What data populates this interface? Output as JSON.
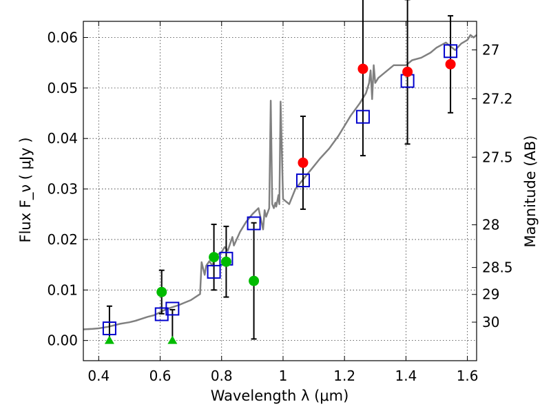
{
  "chart_data": {
    "type": "scatter",
    "xlabel": "Wavelength  λ (μm)",
    "ylabel": "Flux  F_ν  ( μJy )",
    "ylabel_right": "Magnitude (AB)",
    "xlim": [
      0.35,
      1.63
    ],
    "ylim": [
      -0.004,
      0.0632
    ],
    "x_ticks": [
      0.4,
      0.6,
      0.8,
      1,
      1.2,
      1.4,
      1.6
    ],
    "x_tick_labels": [
      "0.4",
      "0.6",
      "0.8",
      "1",
      "1.2",
      "1.4",
      "1.6"
    ],
    "y_ticks": [
      0.0,
      0.01,
      0.02,
      0.03,
      0.04,
      0.05,
      0.06
    ],
    "y_tick_labels": [
      "0.00",
      "0.01",
      "0.02",
      "0.03",
      "0.04",
      "0.05",
      "0.06"
    ],
    "right_ticks": [
      {
        "label": "27",
        "mag": 27
      },
      {
        "label": "27.2",
        "mag": 27.2
      },
      {
        "label": "27.5",
        "mag": 27.5
      },
      {
        "label": "28",
        "mag": 28
      },
      {
        "label": "28.5",
        "mag": 28.5
      },
      {
        "label": "29",
        "mag": 29
      },
      {
        "label": "30",
        "mag": 30
      }
    ],
    "grid": true,
    "colors": {
      "spectrum": "#808080",
      "model": "#0000cc",
      "measured_red": "#ff0000",
      "measured_green": "#00bb00",
      "errorbar": "#000000"
    },
    "series": [
      {
        "type": "line",
        "color": "#808080",
        "x": [
          0.35,
          0.38,
          0.4,
          0.43,
          0.45,
          0.47,
          0.5,
          0.52,
          0.54,
          0.56,
          0.58,
          0.6,
          0.62,
          0.64,
          0.66,
          0.68,
          0.7,
          0.72,
          0.73,
          0.735,
          0.745,
          0.75,
          0.76,
          0.77,
          0.78,
          0.8,
          0.81,
          0.82,
          0.835,
          0.84,
          0.86,
          0.88,
          0.9,
          0.92,
          0.935,
          0.94,
          0.945,
          0.955,
          0.96,
          0.965,
          0.97,
          0.975,
          0.978,
          0.982,
          0.985,
          0.988,
          0.992,
          1.0,
          1.02,
          1.04,
          1.06,
          1.08,
          1.1,
          1.12,
          1.15,
          1.18,
          1.2,
          1.22,
          1.25,
          1.27,
          1.28,
          1.285,
          1.29,
          1.295,
          1.3,
          1.31,
          1.33,
          1.36,
          1.4,
          1.42,
          1.45,
          1.48,
          1.5,
          1.53,
          1.56,
          1.58,
          1.6,
          1.61,
          1.62,
          1.63
        ],
        "y": [
          0.0022,
          0.0023,
          0.0024,
          0.0027,
          0.003,
          0.0033,
          0.0036,
          0.0039,
          0.0043,
          0.0047,
          0.005,
          0.0056,
          0.0062,
          0.0066,
          0.007,
          0.0075,
          0.008,
          0.0088,
          0.0092,
          0.0155,
          0.013,
          0.0148,
          0.0157,
          0.0148,
          0.0168,
          0.0175,
          0.0185,
          0.0178,
          0.0205,
          0.0188,
          0.0215,
          0.0235,
          0.025,
          0.0262,
          0.022,
          0.0258,
          0.0245,
          0.0262,
          0.0475,
          0.027,
          0.0262,
          0.0273,
          0.0265,
          0.0278,
          0.0288,
          0.027,
          0.0473,
          0.028,
          0.027,
          0.03,
          0.0315,
          0.033,
          0.0345,
          0.036,
          0.038,
          0.0405,
          0.0425,
          0.0445,
          0.047,
          0.049,
          0.051,
          0.0535,
          0.0478,
          0.0545,
          0.051,
          0.052,
          0.053,
          0.0545,
          0.0545,
          0.0555,
          0.056,
          0.057,
          0.058,
          0.059,
          0.0575,
          0.0588,
          0.0595,
          0.0605,
          0.06,
          0.0605
        ]
      },
      {
        "type": "open_square",
        "color": "#0000cc",
        "x": [
          0.435,
          0.605,
          0.64,
          0.775,
          0.815,
          0.905,
          1.065,
          1.26,
          1.405,
          1.545
        ],
        "y": [
          0.0024,
          0.0052,
          0.0063,
          0.0136,
          0.0162,
          0.0232,
          0.0317,
          0.0443,
          0.0514,
          0.0573
        ]
      },
      {
        "type": "filled_circle",
        "color": "#ff0000",
        "x": [
          1.065,
          1.26,
          1.405,
          1.545
        ],
        "y": [
          0.0352,
          0.0538,
          0.0532,
          0.0547
        ],
        "yerr": [
          0.0092,
          0.0172,
          0.0143,
          0.0096
        ]
      },
      {
        "type": "filled_circle",
        "color": "#00bb00",
        "x": [
          0.605,
          0.775,
          0.815,
          0.905
        ],
        "y": [
          0.0096,
          0.0165,
          0.0156,
          0.0118
        ],
        "yerr": [
          0.0043,
          0.0065,
          0.007,
          0.0115
        ]
      },
      {
        "type": "upper_limit_triangle",
        "color": "#00bb00",
        "x": [
          0.435,
          0.64
        ],
        "y": [
          0.0,
          0.0
        ],
        "yerr_up": [
          0.0068,
          0.0061
        ]
      }
    ]
  }
}
